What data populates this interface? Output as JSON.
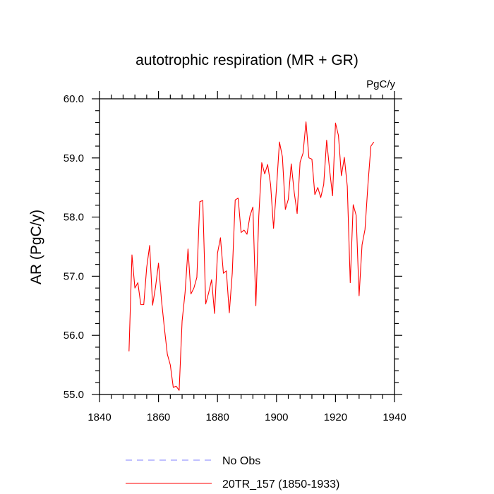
{
  "chart_data": {
    "type": "line",
    "title": "autotrophic respiration (MR + GR)",
    "units_label": "PgC/y",
    "xlabel": "",
    "ylabel": "AR  (PgC/y)",
    "xlim": [
      1840,
      1940
    ],
    "ylim": [
      55.0,
      60.0
    ],
    "xticks": [
      1840,
      1860,
      1880,
      1900,
      1920,
      1940
    ],
    "xtick_labels": [
      "1840",
      "1860",
      "1880",
      "1900",
      "1920",
      "1940"
    ],
    "yticks": [
      55.0,
      56.0,
      57.0,
      58.0,
      59.0,
      60.0
    ],
    "ytick_labels": [
      "55.0",
      "56.0",
      "57.0",
      "58.0",
      "59.0",
      "60.0"
    ],
    "grid": false,
    "legend_position": "bottom",
    "series": [
      {
        "name": "No Obs",
        "color": "#8080ff",
        "dash": "dashed",
        "x": [],
        "y": []
      },
      {
        "name": "20TR_157 (1850-1933)",
        "color": "#ff0000",
        "dash": "solid",
        "x": [
          1850,
          1851,
          1852,
          1853,
          1854,
          1855,
          1856,
          1857,
          1858,
          1859,
          1860,
          1861,
          1862,
          1863,
          1864,
          1865,
          1866,
          1867,
          1868,
          1869,
          1870,
          1871,
          1872,
          1873,
          1874,
          1875,
          1876,
          1877,
          1878,
          1879,
          1880,
          1881,
          1882,
          1883,
          1884,
          1885,
          1886,
          1887,
          1888,
          1889,
          1890,
          1891,
          1892,
          1893,
          1894,
          1895,
          1896,
          1897,
          1898,
          1899,
          1900,
          1901,
          1902,
          1903,
          1904,
          1905,
          1906,
          1907,
          1908,
          1909,
          1910,
          1911,
          1912,
          1913,
          1914,
          1915,
          1916,
          1917,
          1918,
          1919,
          1920,
          1921,
          1922,
          1923,
          1924,
          1925,
          1926,
          1927,
          1928,
          1929,
          1930,
          1931,
          1932,
          1933
        ],
        "y": [
          55.73,
          57.36,
          56.8,
          56.89,
          56.52,
          56.52,
          57.15,
          57.52,
          56.51,
          56.82,
          57.22,
          56.6,
          56.12,
          55.68,
          55.5,
          55.12,
          55.14,
          55.07,
          56.24,
          56.72,
          57.46,
          56.7,
          56.8,
          56.98,
          58.26,
          58.28,
          56.53,
          56.72,
          56.94,
          56.37,
          57.39,
          57.65,
          57.05,
          57.09,
          56.38,
          57.05,
          58.29,
          58.32,
          57.74,
          57.78,
          57.71,
          58.02,
          58.17,
          56.5,
          58.02,
          58.92,
          58.73,
          58.89,
          58.55,
          57.81,
          58.49,
          59.27,
          59.02,
          58.13,
          58.3,
          58.9,
          58.42,
          58.06,
          58.93,
          59.08,
          59.61,
          59.0,
          58.98,
          58.38,
          58.5,
          58.33,
          58.55,
          59.3,
          58.8,
          58.36,
          59.59,
          59.38,
          58.7,
          59.01,
          58.52,
          56.89,
          58.21,
          58.03,
          56.67,
          57.53,
          57.79,
          58.55,
          59.2,
          59.27
        ]
      }
    ]
  }
}
